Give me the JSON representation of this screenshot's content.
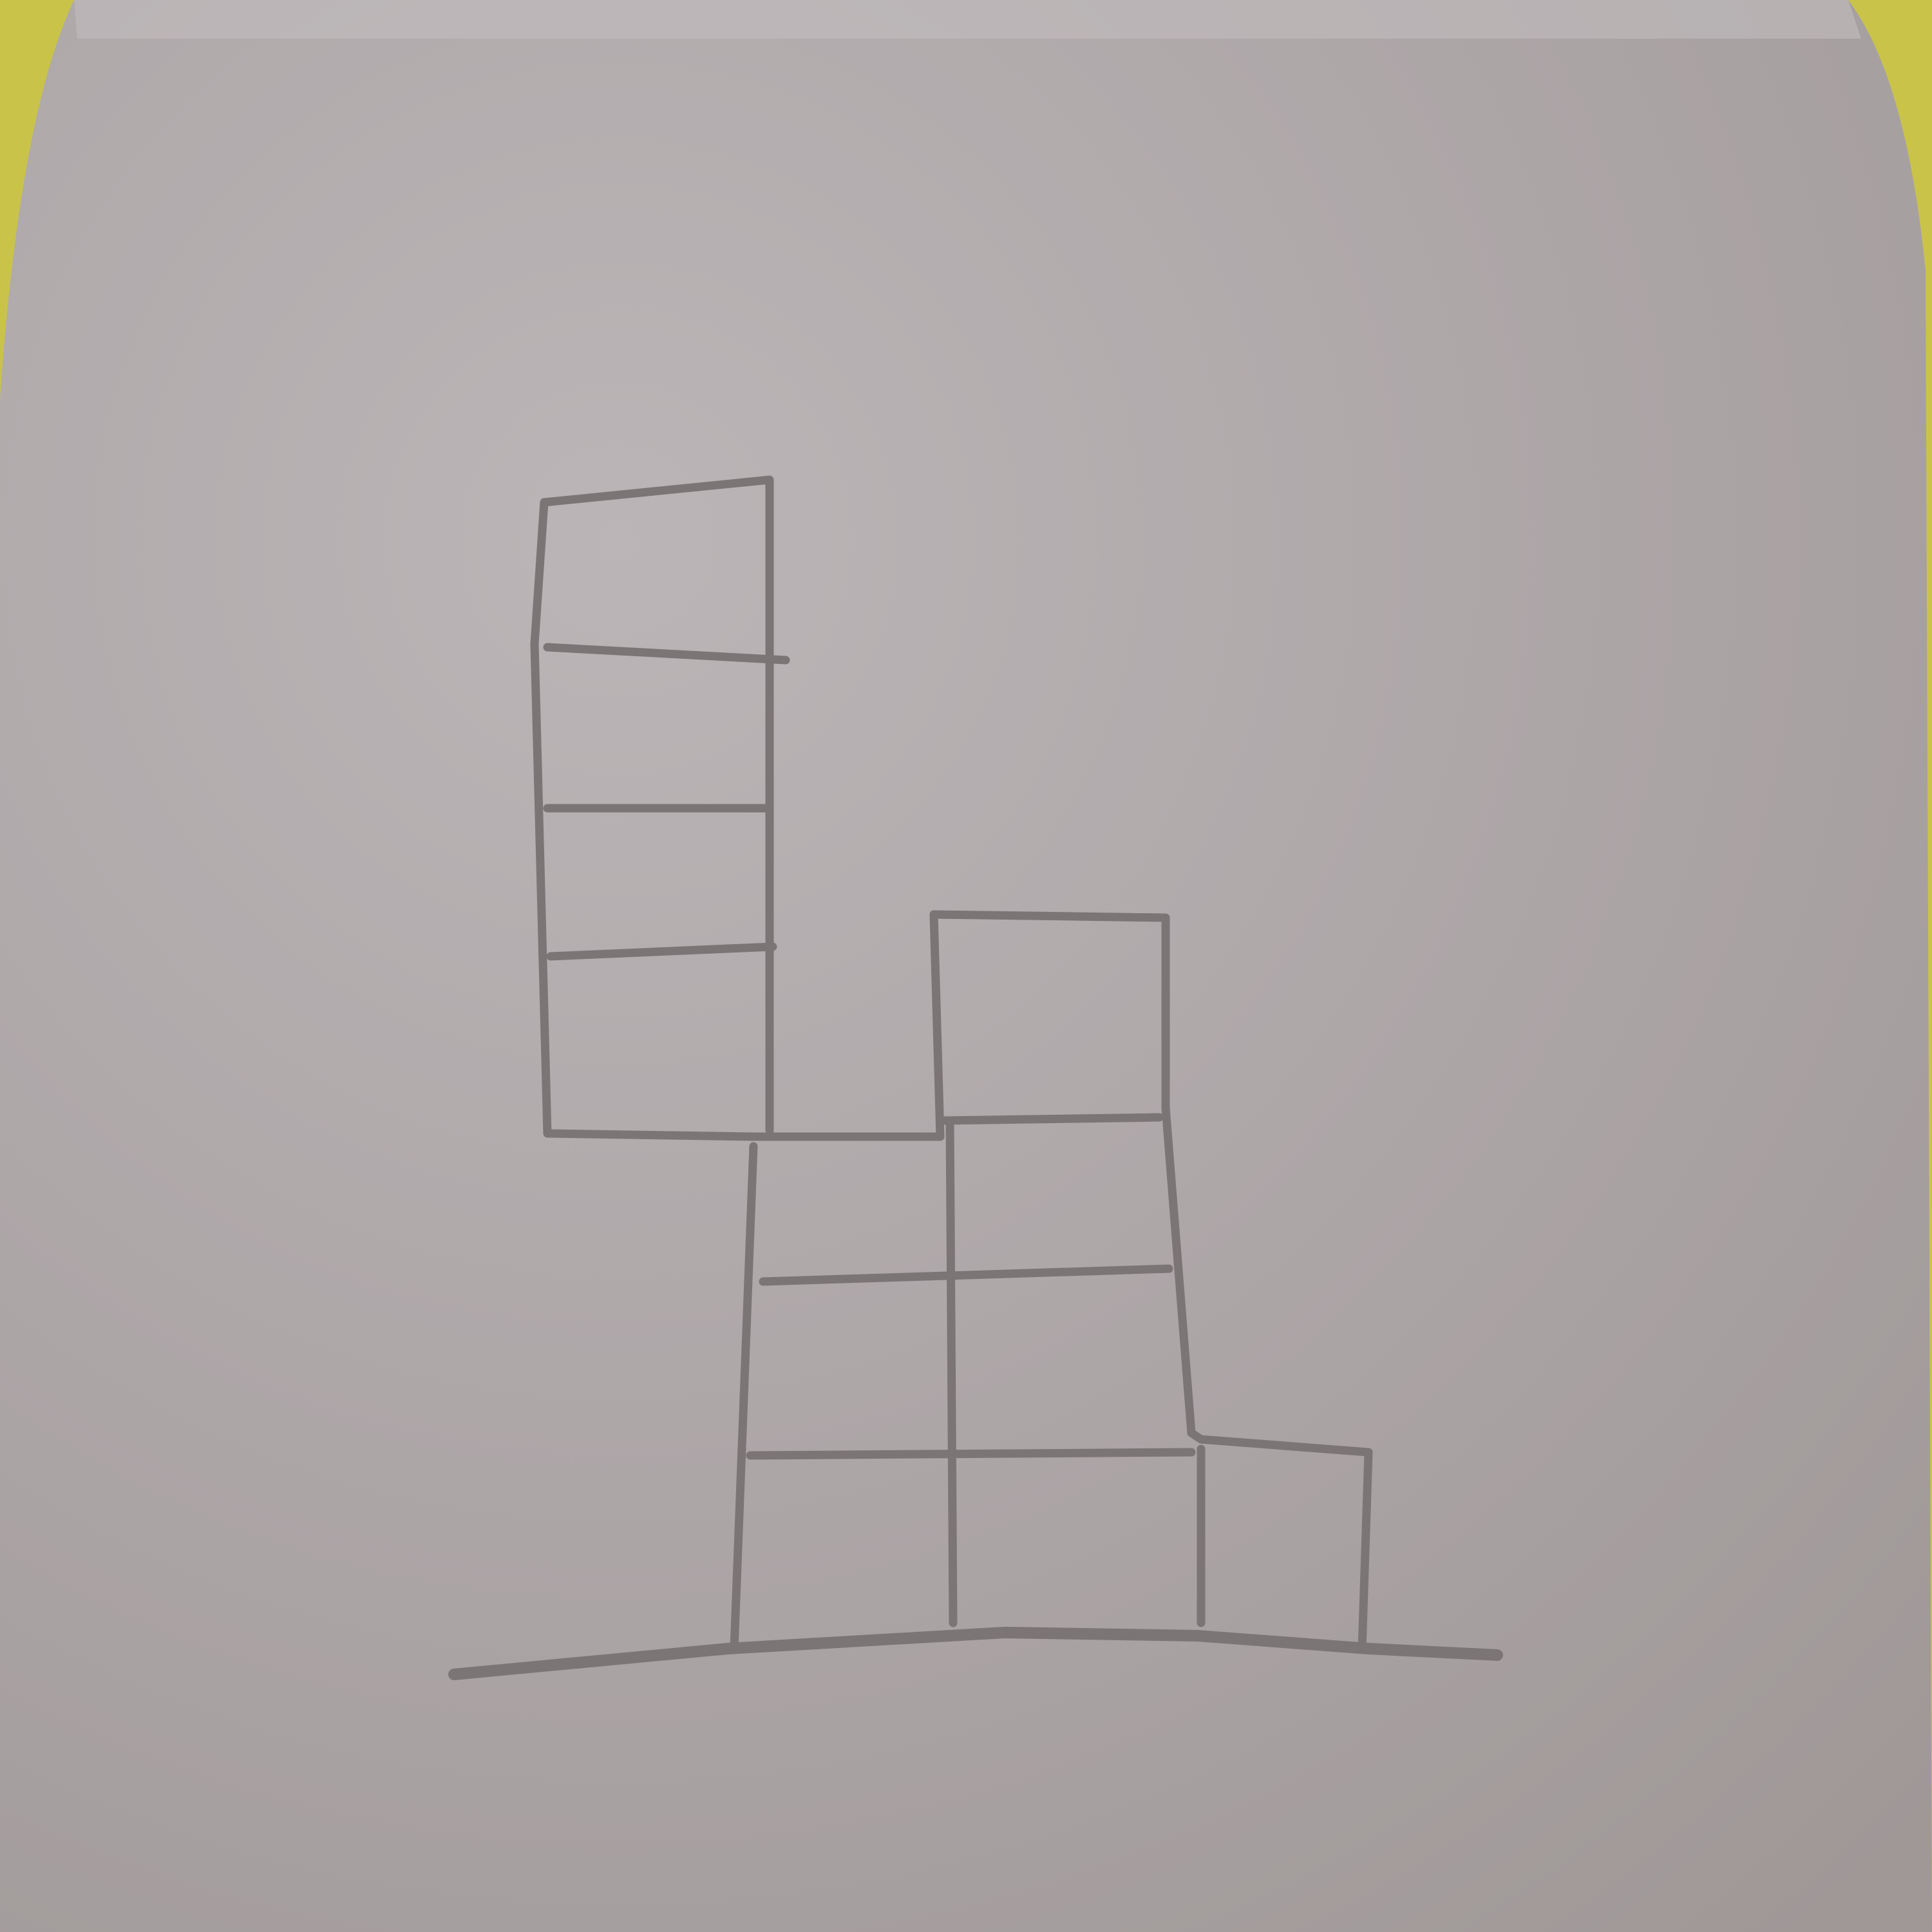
{
  "scene": {
    "subject": "pencil-drawing-of-stacked-squares",
    "colors": {
      "background": "#c9c34a",
      "paper_light": "#b8b2b4",
      "paper_dark": "#a39c9b",
      "pencil": "#7d7778"
    }
  }
}
